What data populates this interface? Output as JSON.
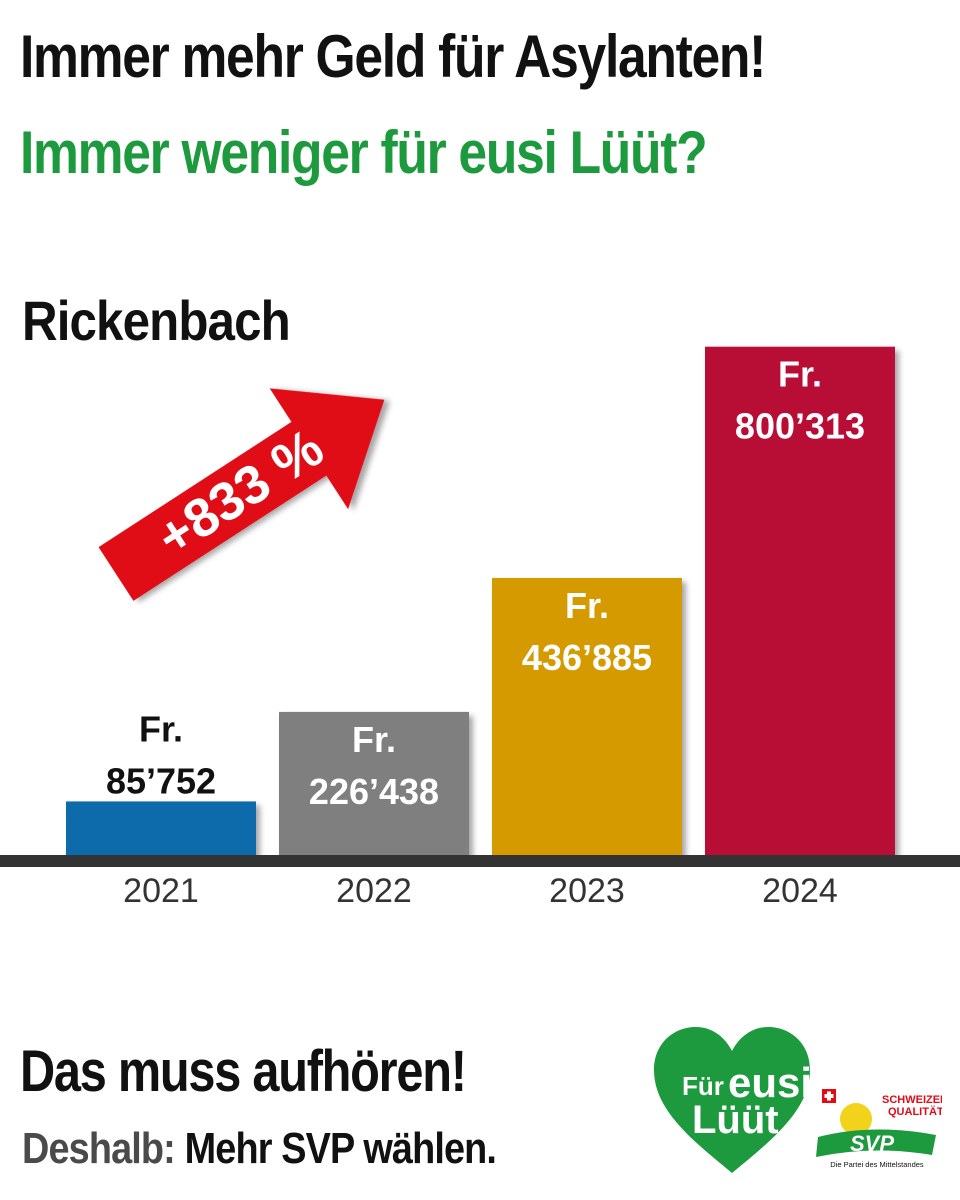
{
  "headline": "Immer mehr Geld für Asylanten!",
  "subheadline": "Immer weniger für eusi Lüüt?",
  "location": "Rickenbach",
  "increase_label": "+833 %",
  "footer": {
    "line1": "Das muss aufhören!",
    "line2_prefix": "Deshalb:",
    "line2_rest": "Mehr SVP wählen."
  },
  "logo": {
    "heart_word1": "Für",
    "heart_word2": "eusi",
    "heart_word3": "Lüüt",
    "svp_tag1": "SCHWEIZER",
    "svp_tag2": "QUALITÄT",
    "svp_name": "SVP",
    "svp_tagline": "Die Partei des Mittelstandes"
  },
  "colors": {
    "green": "#1d9a3e",
    "red_arrow": "#e10a17",
    "bar_2021": "#0f6aab",
    "bar_2022": "#7f7f7f",
    "bar_2023": "#d49a00",
    "bar_2024": "#b80a34",
    "axis": "#333333"
  },
  "chart_data": {
    "type": "bar",
    "title": "Rickenbach",
    "categories": [
      "2021",
      "2022",
      "2023",
      "2024"
    ],
    "values": [
      85752,
      226438,
      436885,
      800313
    ],
    "value_labels": [
      {
        "currency": "Fr.",
        "amount": "85’752"
      },
      {
        "currency": "Fr.",
        "amount": "226’438"
      },
      {
        "currency": "Fr.",
        "amount": "436’885"
      },
      {
        "currency": "Fr.",
        "amount": "800’313"
      }
    ],
    "bar_colors": [
      "#0f6aab",
      "#7f7f7f",
      "#d49a00",
      "#b80a34"
    ],
    "xlabel": "",
    "ylabel": "",
    "ylim": [
      0,
      880000
    ],
    "grid": false,
    "annotation": "+833 %"
  }
}
